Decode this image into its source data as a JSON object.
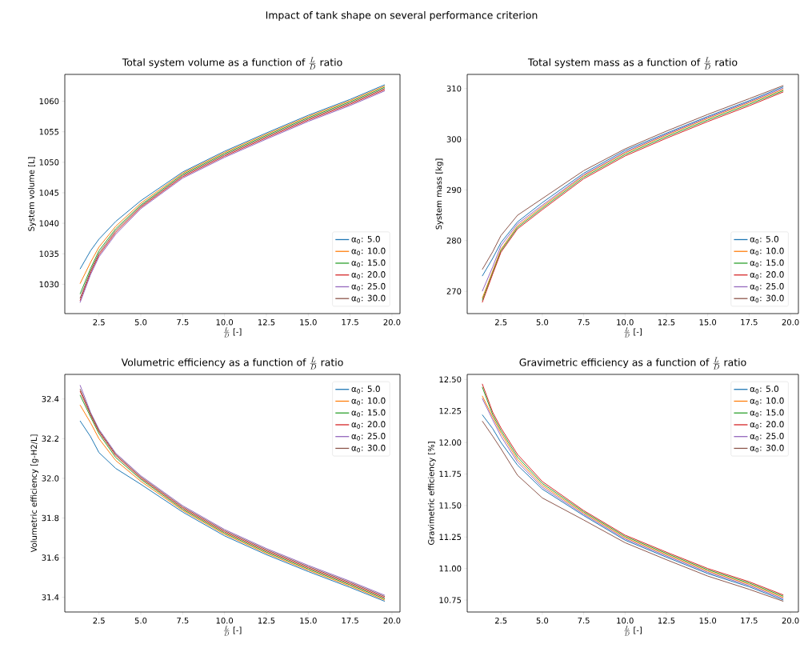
{
  "chart_data": [
    {
      "type": "line",
      "title": "\\text{Total system volume as a function of }\\frac{L}{D}\\text{ ratio}",
      "xlabel": "\\frac{L}{D}\\text{ [-]}",
      "ylabel": "System volume [L]",
      "annotations": [
        "Impact of tank shape on several performance criterion"
      ],
      "legend": "bottom right",
      "xlim": [
        0.46,
        20.48
      ],
      "ylim": [
        1025.2,
        1064.4
      ],
      "xticks": [
        2.5,
        {
          "value": 5,
          "label": "5.0"
        },
        7.5,
        {
          "value": 10,
          "label": "10.0"
        },
        12.5,
        {
          "value": 15,
          "label": "15.0"
        },
        17.5,
        {
          "value": 20,
          "label": "20.0"
        }
      ],
      "yticks": [
        1030,
        1035,
        1040,
        1045,
        1050,
        1055,
        1060
      ],
      "x": [
        1.37,
        2,
        2.5,
        3.5,
        5,
        7.5,
        10,
        12.5,
        15,
        17.5,
        19.57
      ],
      "series": [
        {
          "name": "α$_{0}$: 5.0",
          "color": "#1f77b4",
          "values": [
            1032.5,
            1035.5,
            1037.4,
            1040.3,
            1043.7,
            1048.4,
            1051.8,
            1054.8,
            1057.7,
            1060.3,
            1062.7
          ]
        },
        {
          "name": "α$_{0}$: 10.0",
          "color": "#ff7f0e",
          "values": [
            1030.1,
            1033.6,
            1036.1,
            1039.5,
            1043.3,
            1048.2,
            1051.6,
            1054.6,
            1057.5,
            1060.1,
            1062.5
          ]
        },
        {
          "name": "α$_{0}$: 15.0",
          "color": "#2ca02c",
          "values": [
            1028.4,
            1032.6,
            1035.5,
            1039.1,
            1043.0,
            1048.0,
            1051.4,
            1054.4,
            1057.3,
            1059.9,
            1062.3
          ]
        },
        {
          "name": "α$_{0}$: 20.0",
          "color": "#d62728",
          "values": [
            1027.3,
            1031.9,
            1034.8,
            1038.5,
            1042.6,
            1047.6,
            1051.0,
            1054.0,
            1056.9,
            1059.5,
            1061.9
          ]
        },
        {
          "name": "α$_{0}$: 25.0",
          "color": "#9467bd",
          "values": [
            1027.0,
            1031.6,
            1034.5,
            1038.2,
            1042.4,
            1047.4,
            1050.8,
            1053.8,
            1056.7,
            1059.3,
            1061.7
          ]
        },
        {
          "name": "α$_{0}$: 30.0",
          "color": "#8c564b",
          "values": [
            1027.7,
            1032.2,
            1035.1,
            1038.8,
            1042.8,
            1047.8,
            1051.2,
            1054.2,
            1057.1,
            1059.7,
            1062.1
          ]
        }
      ]
    },
    {
      "type": "line",
      "title": "\\text{Total system mass as a function of }\\frac{L}{D}\\text{ ratio}",
      "xlabel": "\\frac{L}{D}\\text{ [-]}",
      "ylabel": "System mass [kg]",
      "legend": "bottom right",
      "xlim": [
        0.46,
        20.48
      ],
      "ylim": [
        265.6,
        312.8
      ],
      "xticks": [
        2.5,
        {
          "value": 5,
          "label": "5.0"
        },
        7.5,
        {
          "value": 10,
          "label": "10.0"
        },
        12.5,
        {
          "value": 15,
          "label": "15.0"
        },
        17.5,
        {
          "value": 20,
          "label": "20.0"
        }
      ],
      "yticks": [
        270,
        280,
        290,
        300,
        310
      ],
      "x": [
        1.37,
        2,
        2.5,
        3.5,
        5,
        7.5,
        10,
        12.5,
        15,
        17.5,
        19.57
      ],
      "series": [
        {
          "name": "α$_{0}$: 5.0",
          "color": "#1f77b4",
          "values": [
            273.0,
            276.5,
            279.6,
            283.7,
            287.5,
            293.3,
            297.8,
            301.2,
            304.5,
            307.6,
            310.35
          ]
        },
        {
          "name": "α$_{0}$: 10.0",
          "color": "#ff7f0e",
          "values": [
            268.6,
            274.0,
            278.3,
            282.9,
            286.7,
            292.8,
            297.3,
            300.8,
            304.1,
            307.2,
            309.85
          ]
        },
        {
          "name": "α$_{0}$: 15.0",
          "color": "#2ca02c",
          "values": [
            268.2,
            273.7,
            278.0,
            282.6,
            286.4,
            292.5,
            297.0,
            300.5,
            303.8,
            306.9,
            309.6
          ]
        },
        {
          "name": "α$_{0}$: 20.0",
          "color": "#d62728",
          "values": [
            267.8,
            273.4,
            277.7,
            282.3,
            286.1,
            292.2,
            296.7,
            300.2,
            303.5,
            306.6,
            309.35
          ]
        },
        {
          "name": "α$_{0}$: 25.0",
          "color": "#9467bd",
          "values": [
            270.0,
            274.8,
            279.0,
            283.3,
            287.0,
            293.0,
            297.5,
            301.0,
            304.3,
            307.4,
            310.1
          ]
        },
        {
          "name": "α$_{0}$: 30.0",
          "color": "#8c564b",
          "values": [
            274.3,
            277.8,
            281.0,
            285.0,
            288.3,
            293.8,
            298.1,
            301.6,
            304.9,
            308.0,
            310.6
          ]
        }
      ]
    },
    {
      "type": "line",
      "title": "\\text{Volumetric efficiency as a function of }\\frac{L}{D}\\text{ ratio}",
      "xlabel": "\\frac{L}{D}\\text{ [-]}",
      "ylabel": "Volumetric efficiency [g-H2/L]",
      "legend": "top right",
      "xlim": [
        0.46,
        20.48
      ],
      "ylim": [
        31.326,
        32.524
      ],
      "xticks": [
        2.5,
        {
          "value": 5,
          "label": "5.0"
        },
        7.5,
        {
          "value": 10,
          "label": "10.0"
        },
        12.5,
        {
          "value": 15,
          "label": "15.0"
        },
        17.5,
        {
          "value": 20,
          "label": "20.0"
        }
      ],
      "yticks": [
        31.4,
        31.6,
        31.8,
        {
          "value": 32,
          "label": "32.0"
        },
        32.2,
        32.4
      ],
      "x": [
        1.37,
        2,
        2.5,
        3.5,
        5,
        7.5,
        10,
        12.5,
        15,
        17.5,
        19.57
      ],
      "series": [
        {
          "name": "α$_{0}$: 5.0",
          "color": "#1f77b4",
          "values": [
            32.29,
            32.21,
            32.13,
            32.05,
            31.97,
            31.83,
            31.71,
            31.615,
            31.53,
            31.45,
            31.38
          ]
        },
        {
          "name": "α$_{0}$: 10.0",
          "color": "#ff7f0e",
          "values": [
            32.37,
            32.28,
            32.2,
            32.09,
            31.985,
            31.838,
            31.718,
            31.622,
            31.537,
            31.457,
            31.386
          ]
        },
        {
          "name": "α$_{0}$: 15.0",
          "color": "#2ca02c",
          "values": [
            32.42,
            32.31,
            32.225,
            32.105,
            31.995,
            31.844,
            31.724,
            31.628,
            31.543,
            31.463,
            31.392
          ]
        },
        {
          "name": "α$_{0}$: 20.0",
          "color": "#d62728",
          "values": [
            32.44,
            32.32,
            32.235,
            32.115,
            32.001,
            31.85,
            31.73,
            31.634,
            31.549,
            31.469,
            31.398
          ]
        },
        {
          "name": "α$_{0}$: 25.0",
          "color": "#9467bd",
          "values": [
            32.47,
            32.332,
            32.247,
            32.127,
            32.013,
            31.862,
            31.742,
            31.646,
            31.561,
            31.481,
            31.41
          ]
        },
        {
          "name": "α$_{0}$: 30.0",
          "color": "#8c564b",
          "values": [
            32.45,
            32.326,
            32.241,
            32.121,
            32.007,
            31.856,
            31.736,
            31.64,
            31.555,
            31.475,
            31.404
          ]
        }
      ]
    },
    {
      "type": "line",
      "title": "\\text{Gravimetric efficiency as a function of }\\frac{L}{D}\\text{ ratio}",
      "xlabel": "\\frac{L}{D}\\text{ [-]}",
      "ylabel": "Gravimetric efficiency [%]",
      "legend": "top right",
      "xlim": [
        0.46,
        20.48
      ],
      "ylim": [
        10.655,
        12.54
      ],
      "xticks": [
        2.5,
        {
          "value": 5,
          "label": "5.0"
        },
        7.5,
        {
          "value": 10,
          "label": "10.0"
        },
        12.5,
        {
          "value": 15,
          "label": "15.0"
        },
        17.5,
        {
          "value": 20,
          "label": "20.0"
        }
      ],
      "yticks": [
        10.75,
        {
          "value": 11,
          "label": "11.00"
        },
        11.25,
        {
          "value": 11.5,
          "label": "11.50"
        },
        11.75,
        {
          "value": 12,
          "label": "12.00"
        },
        12.25,
        {
          "value": 12.5,
          "label": "12.50"
        }
      ],
      "x": [
        1.37,
        2,
        2.5,
        3.5,
        5,
        7.5,
        10,
        12.5,
        15,
        17.5,
        19.57
      ],
      "series": [
        {
          "name": "α$_{0}$: 5.0",
          "color": "#1f77b4",
          "values": [
            12.22,
            12.11,
            12.0,
            11.82,
            11.63,
            11.42,
            11.225,
            11.09,
            10.96,
            10.855,
            10.75
          ]
        },
        {
          "name": "α$_{0}$: 10.0",
          "color": "#ff7f0e",
          "values": [
            12.37,
            12.2,
            12.075,
            11.865,
            11.66,
            11.44,
            11.245,
            11.11,
            10.98,
            10.875,
            10.77
          ]
        },
        {
          "name": "α$_{0}$: 15.0",
          "color": "#2ca02c",
          "values": [
            12.44,
            12.22,
            12.095,
            11.885,
            11.675,
            11.45,
            11.255,
            11.12,
            10.99,
            10.885,
            10.78
          ]
        },
        {
          "name": "α$_{0}$: 20.0",
          "color": "#d62728",
          "values": [
            12.465,
            12.24,
            12.115,
            11.905,
            11.69,
            11.46,
            11.265,
            11.13,
            11.0,
            10.895,
            10.79
          ]
        },
        {
          "name": "α$_{0}$: 25.0",
          "color": "#9467bd",
          "values": [
            12.35,
            12.18,
            12.05,
            11.845,
            11.645,
            11.43,
            11.235,
            11.1,
            10.97,
            10.865,
            10.76
          ]
        },
        {
          "name": "α$_{0}$: 30.0",
          "color": "#8c564b",
          "values": [
            12.17,
            12.05,
            11.95,
            11.74,
            11.56,
            11.385,
            11.205,
            11.07,
            10.94,
            10.835,
            10.74
          ]
        }
      ]
    }
  ]
}
